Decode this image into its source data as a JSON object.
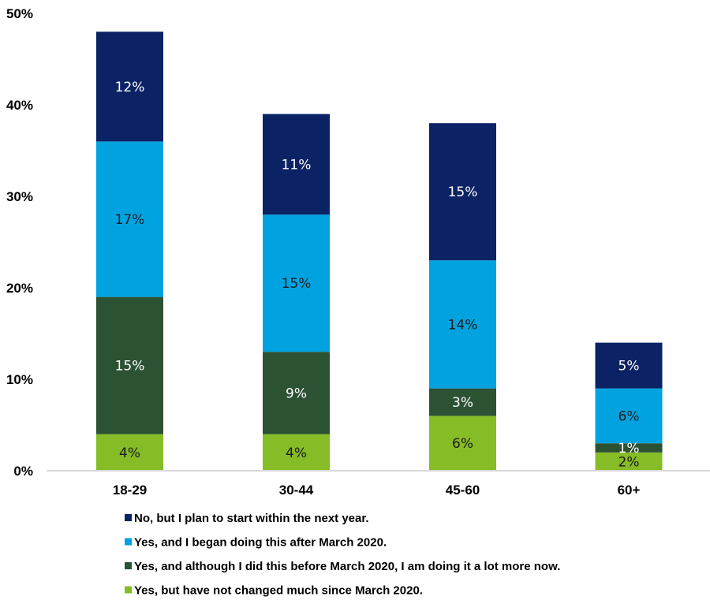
{
  "chart_data": {
    "type": "bar",
    "stacked": true,
    "title": "",
    "xlabel": "",
    "ylabel": "",
    "ylim": [
      0,
      50
    ],
    "y_ticks": [
      "0%",
      "10%",
      "20%",
      "30%",
      "40%",
      "50%"
    ],
    "y_tick_values": [
      0,
      10,
      20,
      30,
      40,
      50
    ],
    "grid": false,
    "legend_position": "bottom",
    "categories": [
      "18-29",
      "30-44",
      "45-60",
      "60+"
    ],
    "series": [
      {
        "name": "Yes, but have not changed much since March 2020.",
        "color": "#86bc25",
        "label_color": "#1a1a1a",
        "values": [
          4,
          4,
          6,
          2
        ]
      },
      {
        "name": "Yes, and although I did this before March 2020, I am doing it a lot more now.",
        "color": "#2c5234",
        "label_color": "#ffffff",
        "values": [
          15,
          9,
          3,
          1
        ]
      },
      {
        "name": "Yes, and I began doing this after March 2020.",
        "color": "#00a3e0",
        "label_color": "#1a1a1a",
        "values": [
          17,
          15,
          14,
          6
        ]
      },
      {
        "name": "No, but I plan to start within the next year.",
        "color": "#0b2265",
        "label_color": "#ffffff",
        "values": [
          12,
          11,
          15,
          5
        ]
      }
    ],
    "legend_order": [
      3,
      2,
      1,
      0
    ],
    "value_suffix": "%"
  }
}
